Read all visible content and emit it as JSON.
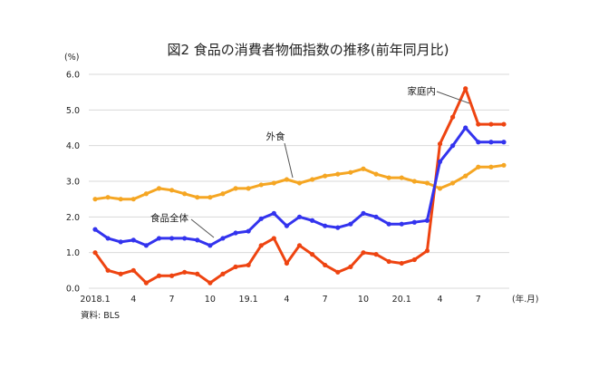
{
  "chart_data": {
    "type": "line",
    "title": "図2 食品の消費者物価指数の推移(前年同月比)",
    "y_unit": "(%)",
    "x_unit": "(年.月)",
    "source": "資料: BLS",
    "ylim": [
      0,
      6
    ],
    "y_ticks": [
      "0.0",
      "1.0",
      "2.0",
      "3.0",
      "4.0",
      "5.0",
      "6.0"
    ],
    "grid": true,
    "x_tick_labels": [
      "2018.1",
      "4",
      "7",
      "10",
      "19.1",
      "4",
      "7",
      "10",
      "20.1",
      "4",
      "7"
    ],
    "x": [
      "2018.1",
      "2018.2",
      "2018.3",
      "2018.4",
      "2018.5",
      "2018.6",
      "2018.7",
      "2018.8",
      "2018.9",
      "2018.10",
      "2018.11",
      "2018.12",
      "2019.1",
      "2019.2",
      "2019.3",
      "2019.4",
      "2019.5",
      "2019.6",
      "2019.7",
      "2019.8",
      "2019.9",
      "2019.10",
      "2019.11",
      "2019.12",
      "2020.1",
      "2020.2",
      "2020.3",
      "2020.4",
      "2020.5",
      "2020.6",
      "2020.7",
      "2020.8",
      "2020.9"
    ],
    "series": [
      {
        "name": "家庭内",
        "color": "#ee4411",
        "values": [
          1.0,
          0.5,
          0.4,
          0.5,
          0.15,
          0.35,
          0.35,
          0.45,
          0.4,
          0.15,
          0.4,
          0.6,
          0.65,
          1.2,
          1.4,
          0.7,
          1.2,
          0.95,
          0.65,
          0.45,
          0.6,
          1.0,
          0.95,
          0.75,
          0.7,
          0.8,
          1.05,
          4.05,
          4.8,
          5.6,
          4.6,
          4.6,
          4.6
        ]
      },
      {
        "name": "外食",
        "color": "#f5a623",
        "values": [
          2.5,
          2.55,
          2.5,
          2.5,
          2.65,
          2.8,
          2.75,
          2.65,
          2.55,
          2.55,
          2.65,
          2.8,
          2.8,
          2.9,
          2.95,
          3.05,
          2.95,
          3.05,
          3.15,
          3.2,
          3.25,
          3.35,
          3.2,
          3.1,
          3.1,
          3.0,
          2.95,
          2.8,
          2.95,
          3.15,
          3.4,
          3.4,
          3.45
        ]
      },
      {
        "name": "食品全体",
        "color": "#3333ee",
        "values": [
          1.65,
          1.4,
          1.3,
          1.35,
          1.2,
          1.4,
          1.4,
          1.4,
          1.35,
          1.2,
          1.4,
          1.55,
          1.6,
          1.95,
          2.1,
          1.75,
          2.0,
          1.9,
          1.75,
          1.7,
          1.8,
          2.1,
          2.0,
          1.8,
          1.8,
          1.85,
          1.9,
          3.55,
          4.0,
          4.5,
          4.1,
          4.1,
          4.1
        ]
      }
    ],
    "annotations": [
      "家庭内",
      "外食",
      "食品全体"
    ]
  }
}
